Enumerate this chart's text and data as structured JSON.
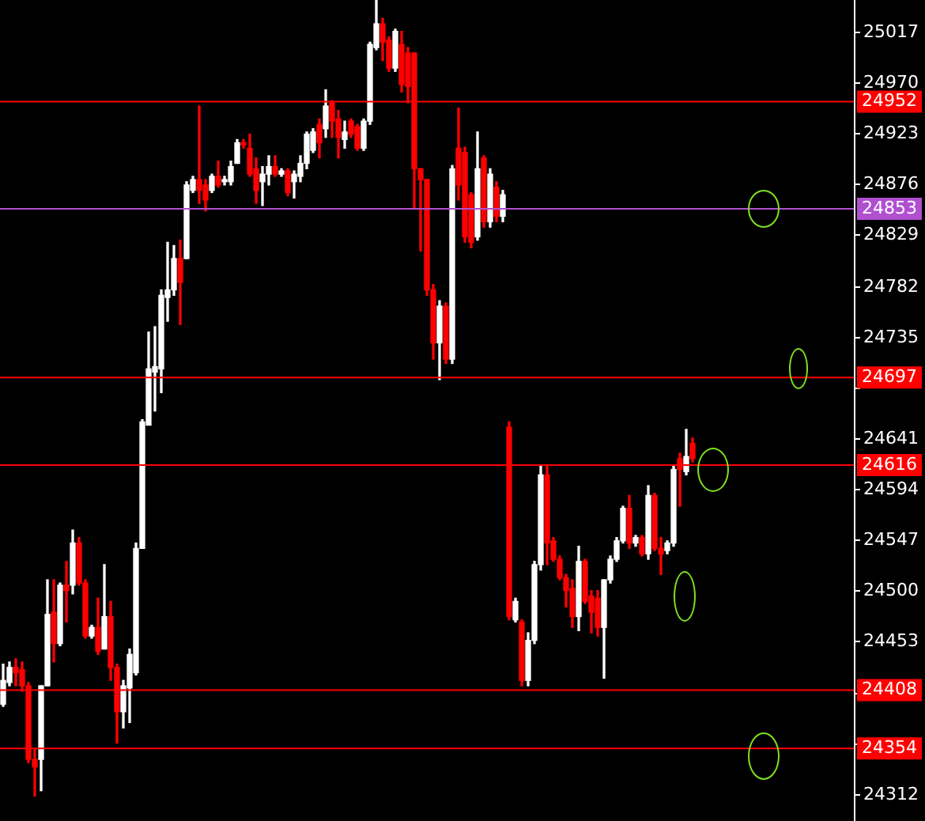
{
  "chart_data": {
    "type": "candlestick",
    "categories": [
      null,
      null,
      null,
      null,
      null,
      null,
      null,
      null,
      null,
      null,
      null,
      null,
      null,
      null,
      null,
      null,
      null,
      null,
      null,
      null,
      null,
      null,
      null,
      null,
      null,
      null,
      null,
      null,
      null,
      null,
      null,
      null,
      null,
      null,
      null,
      null,
      null,
      null,
      null,
      null,
      null,
      null,
      null,
      null,
      null,
      null,
      null,
      null,
      null,
      null,
      null,
      null,
      null,
      null,
      null,
      null,
      null,
      null,
      null,
      null,
      null,
      null,
      null,
      null,
      null,
      null,
      null,
      null,
      null,
      null,
      null,
      null,
      null,
      null,
      null,
      null,
      null,
      null,
      null,
      null,
      null,
      null,
      null,
      null,
      null,
      null,
      null,
      null,
      null,
      null,
      null,
      null,
      null,
      null,
      null,
      null,
      null,
      null,
      null,
      null,
      null,
      null,
      null,
      null,
      null,
      null,
      null,
      null,
      null,
      null,
      null,
      null,
      null,
      null,
      null,
      null,
      null,
      null,
      null,
      null,
      null,
      null,
      null,
      null,
      null,
      null,
      null,
      null,
      null,
      null,
      null,
      null,
      null,
      null,
      null
    ],
    "ohlc": [
      [
        24395,
        24432,
        24393,
        24417
      ],
      [
        24415,
        24434,
        24412,
        24429
      ],
      [
        24429,
        24437,
        24412,
        24424
      ],
      [
        24427,
        24434,
        24407,
        24412
      ],
      [
        24412,
        24415,
        24341,
        24344
      ],
      [
        24344,
        24354,
        24310,
        24337
      ],
      [
        24344,
        24412,
        24315,
        24412
      ],
      [
        24412,
        24510,
        24412,
        24478
      ],
      [
        24480,
        24510,
        24434,
        24451
      ],
      [
        24451,
        24507,
        24449,
        24505
      ],
      [
        24505,
        24527,
        24471,
        24500
      ],
      [
        24505,
        24556,
        24497,
        24544
      ],
      [
        24544,
        24549,
        24505,
        24507
      ],
      [
        24507,
        24510,
        24456,
        24458
      ],
      [
        24458,
        24468,
        24456,
        24466
      ],
      [
        24466,
        24493,
        24441,
        24444
      ],
      [
        24446,
        24524,
        24446,
        24476
      ],
      [
        24476,
        24490,
        24417,
        24429
      ],
      [
        24429,
        24432,
        24359,
        24388
      ],
      [
        24388,
        24417,
        24373,
        24412
      ],
      [
        24410,
        24446,
        24378,
        24441
      ],
      [
        24424,
        24544,
        24422,
        24539
      ],
      [
        24539,
        24658,
        24539,
        24656
      ],
      [
        24653,
        24739,
        24653,
        24705
      ],
      [
        24702,
        24744,
        24666,
        24707
      ],
      [
        24705,
        24778,
        24683,
        24773
      ],
      [
        24771,
        24822,
        24749,
        24778
      ],
      [
        24778,
        24819,
        24773,
        24807
      ],
      [
        24807,
        24824,
        24746,
        24785
      ],
      [
        24807,
        24878,
        24807,
        24875
      ],
      [
        24870,
        24883,
        24868,
        24880
      ],
      [
        24880,
        24948,
        24858,
        24870
      ],
      [
        24875,
        24880,
        24851,
        24861
      ],
      [
        24870,
        24885,
        24868,
        24883
      ],
      [
        24883,
        24897,
        24873,
        24875
      ],
      [
        24878,
        24883,
        24875,
        24880
      ],
      [
        24878,
        24897,
        24875,
        24892
      ],
      [
        24895,
        24917,
        24895,
        24914
      ],
      [
        24914,
        24917,
        24909,
        24912
      ],
      [
        24909,
        24922,
        24883,
        24885
      ],
      [
        24890,
        24900,
        24858,
        24870
      ],
      [
        24878,
        24892,
        24856,
        24885
      ],
      [
        24885,
        24902,
        24875,
        24892
      ],
      [
        24892,
        24902,
        24883,
        24885
      ],
      [
        24885,
        24890,
        24883,
        24888
      ],
      [
        24888,
        24890,
        24865,
        24868
      ],
      [
        24878,
        24888,
        24863,
        24885
      ],
      [
        24883,
        24902,
        24878,
        24895
      ],
      [
        24895,
        24924,
        24890,
        24922
      ],
      [
        24907,
        24927,
        24905,
        24924
      ],
      [
        24931,
        24936,
        24900,
        24914
      ],
      [
        24927,
        24963,
        24919,
        24948
      ],
      [
        24951,
        24953,
        24919,
        24934
      ],
      [
        24936,
        24944,
        24900,
        24919
      ],
      [
        24917,
        24934,
        24909,
        24924
      ],
      [
        24934,
        24936,
        24919,
        24922
      ],
      [
        24929,
        24931,
        24907,
        24909
      ],
      [
        24909,
        24936,
        24907,
        24934
      ],
      [
        24934,
        25007,
        24931,
        25005
      ],
      [
        25002,
        25046,
        25000,
        25024
      ],
      [
        25024,
        25029,
        24990,
        25007
      ],
      [
        25009,
        25012,
        24980,
        24983
      ],
      [
        24983,
        25019,
        24980,
        25017
      ],
      [
        25005,
        25017,
        24961,
        24968
      ],
      [
        24997,
        25002,
        24951,
        24966
      ],
      [
        24997,
        24997,
        24853,
        24890
      ],
      [
        24890,
        24890,
        24814,
        24880
      ],
      [
        24880,
        24880,
        24773,
        24778
      ],
      [
        24778,
        24783,
        24714,
        24729
      ],
      [
        24729,
        24768,
        24695,
        24763
      ],
      [
        24763,
        24766,
        24710,
        24714
      ],
      [
        24714,
        24893,
        24710,
        24890
      ],
      [
        24909,
        24946,
        24861,
        24875
      ],
      [
        24905,
        24910,
        24822,
        24827
      ],
      [
        24866,
        24868,
        24817,
        24822
      ],
      [
        24827,
        24924,
        24824,
        24890
      ],
      [
        24900,
        24902,
        24836,
        24841
      ],
      [
        24841,
        24890,
        24836,
        24885
      ],
      [
        24873,
        24878,
        24841,
        24846
      ],
      [
        24846,
        24870,
        24841,
        24866
      ],
      [
        24651,
        24656,
        24473,
        24476
      ],
      [
        24473,
        24493,
        24471,
        24490
      ],
      [
        24471,
        24473,
        24412,
        24417
      ],
      [
        24417,
        24461,
        24412,
        24454
      ],
      [
        24454,
        24527,
        24451,
        24524
      ],
      [
        24524,
        24615,
        24519,
        24607
      ],
      [
        24607,
        24615,
        24524,
        24544
      ],
      [
        24546,
        24549,
        24527,
        24529
      ],
      [
        24529,
        24532,
        24510,
        24512
      ],
      [
        24512,
        24515,
        24485,
        24500
      ],
      [
        24502,
        24510,
        24466,
        24476
      ],
      [
        24476,
        24541,
        24463,
        24527
      ],
      [
        24527,
        24529,
        24488,
        24490
      ],
      [
        24495,
        24500,
        24461,
        24480
      ],
      [
        24493,
        24500,
        24458,
        24466
      ],
      [
        24466,
        24510,
        24419,
        24510
      ],
      [
        24510,
        24532,
        24507,
        24529
      ],
      [
        24529,
        24549,
        24527,
        24546
      ],
      [
        24546,
        24578,
        24544,
        24576
      ],
      [
        24576,
        24588,
        24539,
        24544
      ],
      [
        24544,
        24551,
        24541,
        24549
      ],
      [
        24549,
        24551,
        24532,
        24534
      ],
      [
        24534,
        24597,
        24529,
        24588
      ],
      [
        24588,
        24590,
        24537,
        24539
      ],
      [
        24539,
        24549,
        24515,
        24534
      ],
      [
        24537,
        24546,
        24534,
        24544
      ],
      [
        24544,
        24615,
        24541,
        24612
      ],
      [
        24622,
        24627,
        24578,
        24612
      ],
      [
        24610,
        24649,
        24607,
        24624
      ],
      [
        24636,
        24641,
        24619,
        24622
      ],
      null,
      null,
      null,
      null,
      null,
      null,
      null,
      null,
      null,
      null,
      null,
      null,
      null,
      null,
      null,
      null,
      null,
      null,
      null,
      null,
      null,
      null,
      null,
      null,
      null
    ],
    "colors": [
      "#ffffff",
      "#ffffff",
      "#ff0000",
      "#ff0000",
      "#ff0000",
      "#ff0000",
      "#ffffff",
      "#ffffff",
      "#ff0000",
      "#ffffff",
      "#ff0000",
      "#ffffff",
      "#ff0000",
      "#ff0000",
      "#ffffff",
      "#ff0000",
      "#ffffff",
      "#ff0000",
      "#ff0000",
      "#ffffff",
      "#ffffff",
      "#ffffff",
      "#ffffff",
      "#ffffff",
      "#ffffff",
      "#ffffff",
      "#ffffff",
      "#ffffff",
      "#ff0000",
      "#ffffff",
      "#ffffff",
      "#ff0000",
      "#ff0000",
      "#ffffff",
      "#ff0000",
      "#ffffff",
      "#ffffff",
      "#ffffff",
      "#ff0000",
      "#ff0000",
      "#ff0000",
      "#ffffff",
      "#ffffff",
      "#ff0000",
      "#ffffff",
      "#ff0000",
      "#ffffff",
      "#ffffff",
      "#ffffff",
      "#ffffff",
      "#ff0000",
      "#ffffff",
      "#ff0000",
      "#ff0000",
      "#ffffff",
      "#ff0000",
      "#ff0000",
      "#ffffff",
      "#ffffff",
      "#ffffff",
      "#ff0000",
      "#ff0000",
      "#ffffff",
      "#ff0000",
      "#ff0000",
      "#ff0000",
      "#ff0000",
      "#ff0000",
      "#ff0000",
      "#ffffff",
      "#ff0000",
      "#ffffff",
      "#ff0000",
      "#ff0000",
      "#ff0000",
      "#ffffff",
      "#ff0000",
      "#ffffff",
      "#ff0000",
      "#ffffff",
      "#ff0000",
      "#ffffff",
      "#ff0000",
      "#ffffff",
      "#ffffff",
      "#ffffff",
      "#ff0000",
      "#ff0000",
      "#ff0000",
      "#ff0000",
      "#ff0000",
      "#ffffff",
      "#ff0000",
      "#ff0000",
      "#ff0000",
      "#ffffff",
      "#ffffff",
      "#ffffff",
      "#ffffff",
      "#ff0000",
      "#ffffff",
      "#ff0000",
      "#ffffff",
      "#ff0000",
      "#ff0000",
      "#ffffff",
      "#ffffff",
      "#ff0000",
      "#ffffff",
      "#ff0000",
      null,
      null,
      null,
      null,
      null,
      null,
      null,
      null,
      null,
      null,
      null,
      null,
      null,
      null,
      null,
      null,
      null,
      null,
      null,
      null,
      null,
      null,
      null,
      null,
      null
    ],
    "ylim": [
      24287,
      25046
    ],
    "yticks": [
      25017,
      24970,
      24923,
      24876,
      24829,
      24782,
      24735,
      {
        "value": 24688,
        "label": null
      },
      24641,
      24594,
      24547,
      24500,
      24453,
      {
        "value": 24406,
        "label": null
      },
      {
        "value": 24359,
        "label": null
      },
      24312
    ],
    "ref_lines": [
      {
        "axis": "y",
        "value": 24952,
        "label": "24952",
        "color": "#ff0000"
      },
      {
        "axis": "y",
        "value": 24853,
        "label": "24853",
        "color": "#b050d0"
      },
      {
        "axis": "y",
        "value": 24697,
        "label": "24697",
        "color": "#ff0000"
      },
      {
        "axis": "y",
        "value": 24616,
        "label": "24616",
        "color": "#ff0000"
      },
      {
        "axis": "y",
        "value": 24408,
        "label": "24408",
        "color": "#ff0000"
      },
      {
        "axis": "y",
        "value": 24354,
        "label": "24354",
        "color": "#ff0000"
      }
    ],
    "grid": false,
    "legend": false
  }
}
